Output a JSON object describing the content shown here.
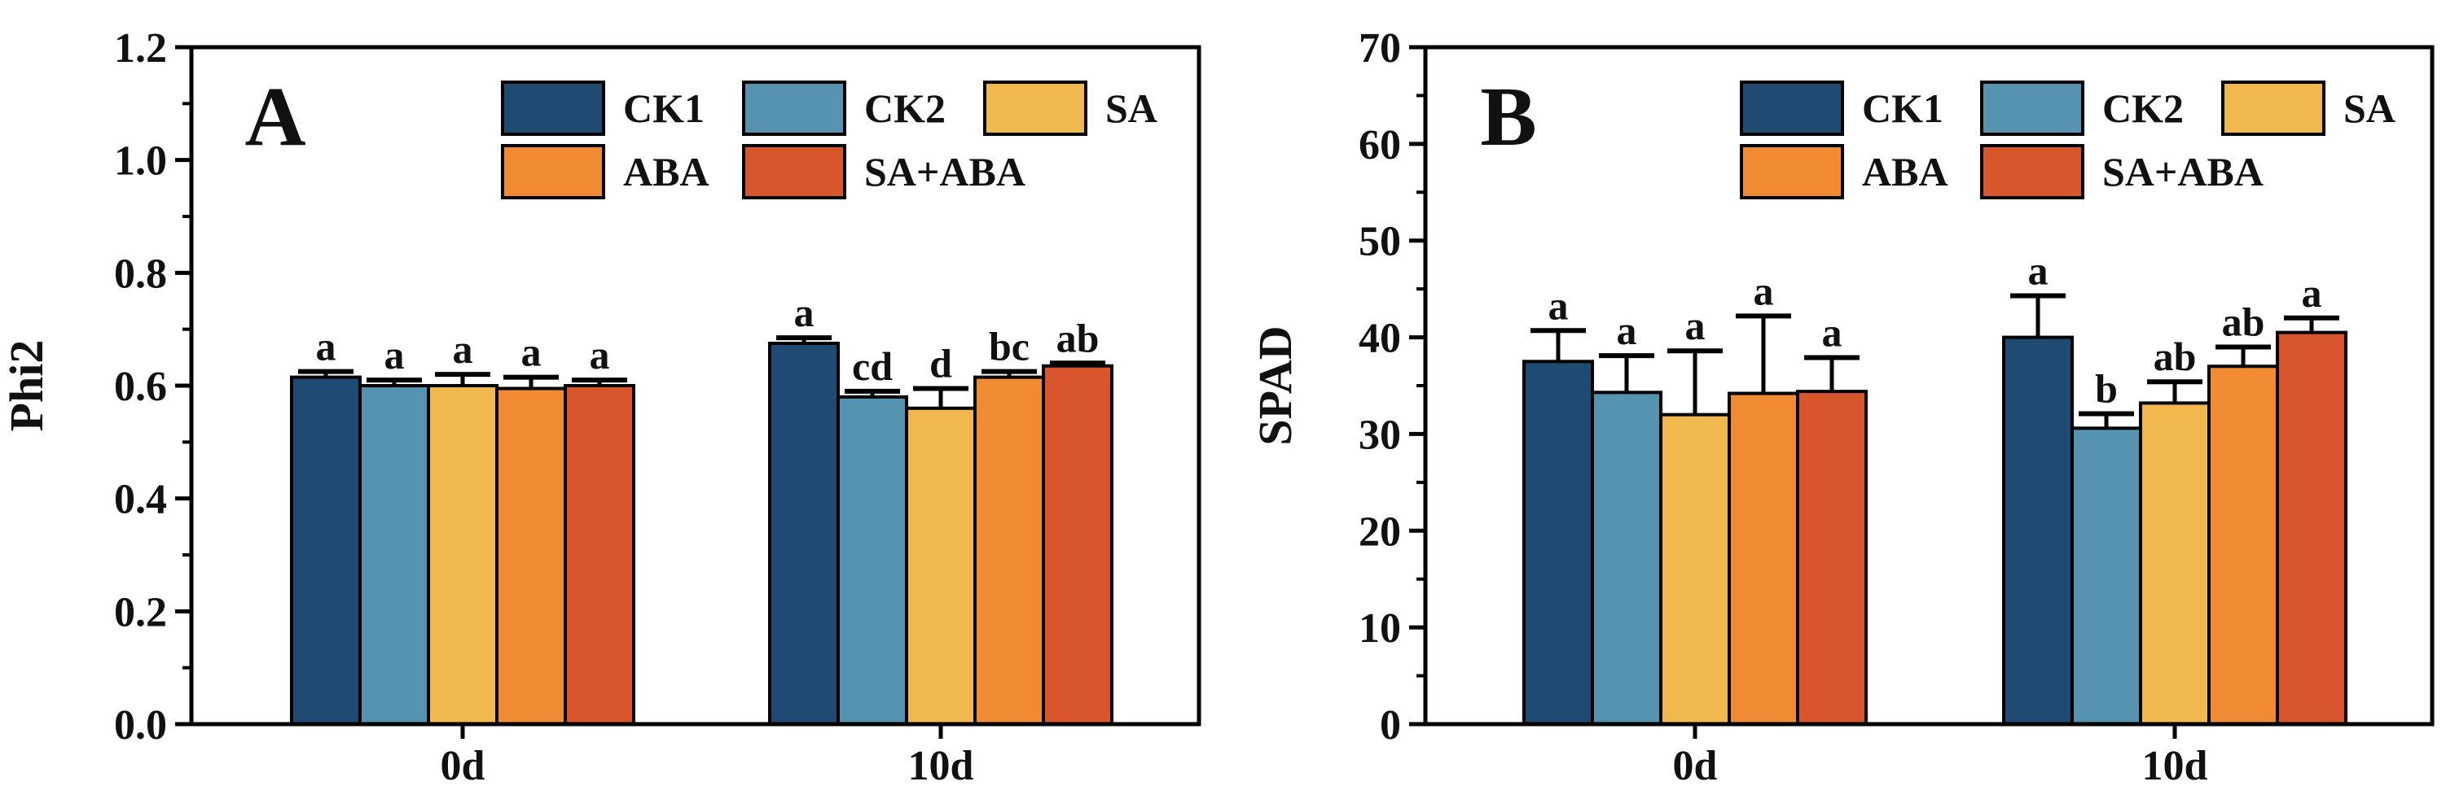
{
  "chart_data": [
    {
      "type": "bar",
      "panel_label": "A",
      "ylabel": "Phi2",
      "xlabel": "",
      "ylim": [
        0,
        1.2
      ],
      "yticks": [
        "0.0",
        "0.2",
        "0.4",
        "0.6",
        "0.8",
        "1.0",
        "1.2"
      ],
      "categories": [
        "0d",
        "10d"
      ],
      "legend_position": "top-right",
      "series": [
        {
          "name": "CK1",
          "color": "#1f4a72",
          "values": [
            0.615,
            0.675
          ],
          "errors": [
            0.01,
            0.01
          ],
          "labels": [
            "a",
            "a"
          ]
        },
        {
          "name": "CK2",
          "color": "#5593b1",
          "values": [
            0.6,
            0.58
          ],
          "errors": [
            0.01,
            0.01
          ],
          "labels": [
            "a",
            "cd"
          ]
        },
        {
          "name": "SA",
          "color": "#f0b84e",
          "values": [
            0.6,
            0.56
          ],
          "errors": [
            0.02,
            0.035
          ],
          "labels": [
            "a",
            "d"
          ]
        },
        {
          "name": "ABA",
          "color": "#f08a33",
          "values": [
            0.595,
            0.615
          ],
          "errors": [
            0.02,
            0.01
          ],
          "labels": [
            "a",
            "bc"
          ]
        },
        {
          "name": "SA+ABA",
          "color": "#d9552b",
          "values": [
            0.6,
            0.635
          ],
          "errors": [
            0.01,
            0.005
          ],
          "labels": [
            "a",
            "ab"
          ]
        }
      ]
    },
    {
      "type": "bar",
      "panel_label": "B",
      "ylabel": "SPAD",
      "xlabel": "",
      "ylim": [
        0,
        70
      ],
      "yticks": [
        "0",
        "10",
        "20",
        "30",
        "40",
        "50",
        "60",
        "70"
      ],
      "categories": [
        "0d",
        "10d"
      ],
      "legend_position": "top-right",
      "series": [
        {
          "name": "CK1",
          "color": "#1f4a72",
          "values": [
            37.5,
            40.0
          ],
          "errors": [
            3.2,
            4.3
          ],
          "labels": [
            "a",
            "a"
          ]
        },
        {
          "name": "CK2",
          "color": "#5593b1",
          "values": [
            34.3,
            30.6
          ],
          "errors": [
            3.8,
            1.5
          ],
          "labels": [
            "a",
            "b"
          ]
        },
        {
          "name": "SA",
          "color": "#f0b84e",
          "values": [
            32.0,
            33.2
          ],
          "errors": [
            6.6,
            2.2
          ],
          "labels": [
            "a",
            "ab"
          ]
        },
        {
          "name": "ABA",
          "color": "#f08a33",
          "values": [
            34.2,
            37.0
          ],
          "errors": [
            8.0,
            2.0
          ],
          "labels": [
            "a",
            "ab"
          ]
        },
        {
          "name": "SA+ABA",
          "color": "#d9552b",
          "values": [
            34.4,
            40.5
          ],
          "errors": [
            3.5,
            1.5
          ],
          "labels": [
            "a",
            "a"
          ]
        }
      ]
    }
  ]
}
